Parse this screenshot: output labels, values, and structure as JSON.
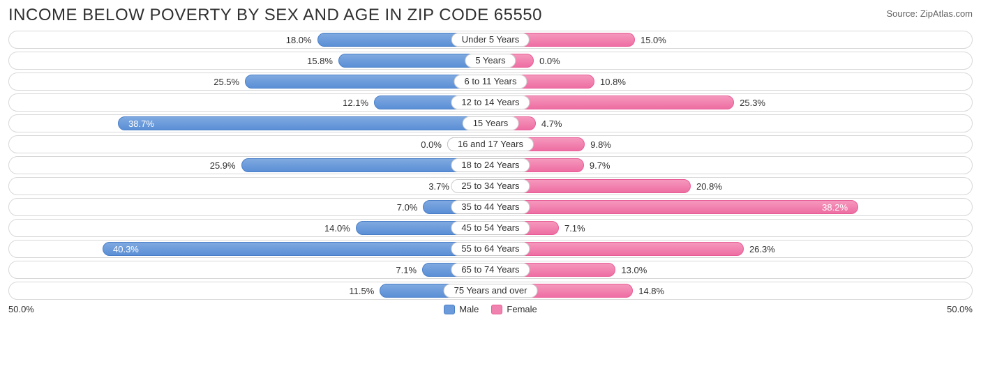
{
  "title": "INCOME BELOW POVERTY BY SEX AND AGE IN ZIP CODE 65550",
  "source": "Source: ZipAtlas.com",
  "chart": {
    "type": "diverging-bar",
    "axis_max": 50.0,
    "axis_label_left": "50.0%",
    "axis_label_right": "50.0%",
    "male_color": "#6b9bdb",
    "male_border": "#4a7fc7",
    "female_color": "#f082af",
    "female_border": "#e85c95",
    "track_border": "#d8d8d8",
    "background": "#ffffff",
    "label_fontsize": 13,
    "title_fontsize": 24,
    "legend": {
      "male": "Male",
      "female": "Female"
    },
    "categories": [
      {
        "label": "Under 5 Years",
        "male": 18.0,
        "female": 15.0,
        "male_txt": "18.0%",
        "female_txt": "15.0%"
      },
      {
        "label": "5 Years",
        "male": 15.8,
        "female": 0.0,
        "male_txt": "15.8%",
        "female_txt": "0.0%"
      },
      {
        "label": "6 to 11 Years",
        "male": 25.5,
        "female": 10.8,
        "male_txt": "25.5%",
        "female_txt": "10.8%"
      },
      {
        "label": "12 to 14 Years",
        "male": 12.1,
        "female": 25.3,
        "male_txt": "12.1%",
        "female_txt": "25.3%"
      },
      {
        "label": "15 Years",
        "male": 38.7,
        "female": 4.7,
        "male_txt": "38.7%",
        "female_txt": "4.7%"
      },
      {
        "label": "16 and 17 Years",
        "male": 0.0,
        "female": 9.8,
        "male_txt": "0.0%",
        "female_txt": "9.8%"
      },
      {
        "label": "18 to 24 Years",
        "male": 25.9,
        "female": 9.7,
        "male_txt": "25.9%",
        "female_txt": "9.7%"
      },
      {
        "label": "25 to 34 Years",
        "male": 3.7,
        "female": 20.8,
        "male_txt": "3.7%",
        "female_txt": "20.8%"
      },
      {
        "label": "35 to 44 Years",
        "male": 7.0,
        "female": 38.2,
        "male_txt": "7.0%",
        "female_txt": "38.2%"
      },
      {
        "label": "45 to 54 Years",
        "male": 14.0,
        "female": 7.1,
        "male_txt": "14.0%",
        "female_txt": "7.1%"
      },
      {
        "label": "55 to 64 Years",
        "male": 40.3,
        "female": 26.3,
        "male_txt": "40.3%",
        "female_txt": "26.3%"
      },
      {
        "label": "65 to 74 Years",
        "male": 7.1,
        "female": 13.0,
        "male_txt": "7.1%",
        "female_txt": "13.0%"
      },
      {
        "label": "75 Years and over",
        "male": 11.5,
        "female": 14.8,
        "male_txt": "11.5%",
        "female_txt": "14.8%"
      }
    ]
  }
}
